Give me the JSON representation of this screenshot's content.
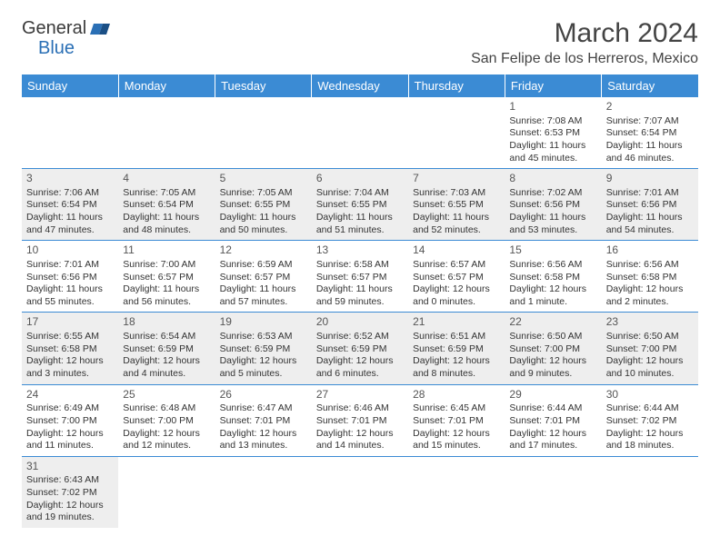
{
  "logo": {
    "text1": "General",
    "text2": "Blue"
  },
  "title": "March 2024",
  "location": "San Felipe de los Herreros, Mexico",
  "colors": {
    "header_bg": "#3b8bd4",
    "header_fg": "#ffffff",
    "alt_row_bg": "#eeeeee",
    "border": "#3b8bd4",
    "text": "#333333"
  },
  "days_of_week": [
    "Sunday",
    "Monday",
    "Tuesday",
    "Wednesday",
    "Thursday",
    "Friday",
    "Saturday"
  ],
  "weeks": [
    [
      null,
      null,
      null,
      null,
      null,
      {
        "n": "1",
        "sunrise": "Sunrise: 7:08 AM",
        "sunset": "Sunset: 6:53 PM",
        "day1": "Daylight: 11 hours",
        "day2": "and 45 minutes."
      },
      {
        "n": "2",
        "sunrise": "Sunrise: 7:07 AM",
        "sunset": "Sunset: 6:54 PM",
        "day1": "Daylight: 11 hours",
        "day2": "and 46 minutes."
      }
    ],
    [
      {
        "n": "3",
        "sunrise": "Sunrise: 7:06 AM",
        "sunset": "Sunset: 6:54 PM",
        "day1": "Daylight: 11 hours",
        "day2": "and 47 minutes."
      },
      {
        "n": "4",
        "sunrise": "Sunrise: 7:05 AM",
        "sunset": "Sunset: 6:54 PM",
        "day1": "Daylight: 11 hours",
        "day2": "and 48 minutes."
      },
      {
        "n": "5",
        "sunrise": "Sunrise: 7:05 AM",
        "sunset": "Sunset: 6:55 PM",
        "day1": "Daylight: 11 hours",
        "day2": "and 50 minutes."
      },
      {
        "n": "6",
        "sunrise": "Sunrise: 7:04 AM",
        "sunset": "Sunset: 6:55 PM",
        "day1": "Daylight: 11 hours",
        "day2": "and 51 minutes."
      },
      {
        "n": "7",
        "sunrise": "Sunrise: 7:03 AM",
        "sunset": "Sunset: 6:55 PM",
        "day1": "Daylight: 11 hours",
        "day2": "and 52 minutes."
      },
      {
        "n": "8",
        "sunrise": "Sunrise: 7:02 AM",
        "sunset": "Sunset: 6:56 PM",
        "day1": "Daylight: 11 hours",
        "day2": "and 53 minutes."
      },
      {
        "n": "9",
        "sunrise": "Sunrise: 7:01 AM",
        "sunset": "Sunset: 6:56 PM",
        "day1": "Daylight: 11 hours",
        "day2": "and 54 minutes."
      }
    ],
    [
      {
        "n": "10",
        "sunrise": "Sunrise: 7:01 AM",
        "sunset": "Sunset: 6:56 PM",
        "day1": "Daylight: 11 hours",
        "day2": "and 55 minutes."
      },
      {
        "n": "11",
        "sunrise": "Sunrise: 7:00 AM",
        "sunset": "Sunset: 6:57 PM",
        "day1": "Daylight: 11 hours",
        "day2": "and 56 minutes."
      },
      {
        "n": "12",
        "sunrise": "Sunrise: 6:59 AM",
        "sunset": "Sunset: 6:57 PM",
        "day1": "Daylight: 11 hours",
        "day2": "and 57 minutes."
      },
      {
        "n": "13",
        "sunrise": "Sunrise: 6:58 AM",
        "sunset": "Sunset: 6:57 PM",
        "day1": "Daylight: 11 hours",
        "day2": "and 59 minutes."
      },
      {
        "n": "14",
        "sunrise": "Sunrise: 6:57 AM",
        "sunset": "Sunset: 6:57 PM",
        "day1": "Daylight: 12 hours",
        "day2": "and 0 minutes."
      },
      {
        "n": "15",
        "sunrise": "Sunrise: 6:56 AM",
        "sunset": "Sunset: 6:58 PM",
        "day1": "Daylight: 12 hours",
        "day2": "and 1 minute."
      },
      {
        "n": "16",
        "sunrise": "Sunrise: 6:56 AM",
        "sunset": "Sunset: 6:58 PM",
        "day1": "Daylight: 12 hours",
        "day2": "and 2 minutes."
      }
    ],
    [
      {
        "n": "17",
        "sunrise": "Sunrise: 6:55 AM",
        "sunset": "Sunset: 6:58 PM",
        "day1": "Daylight: 12 hours",
        "day2": "and 3 minutes."
      },
      {
        "n": "18",
        "sunrise": "Sunrise: 6:54 AM",
        "sunset": "Sunset: 6:59 PM",
        "day1": "Daylight: 12 hours",
        "day2": "and 4 minutes."
      },
      {
        "n": "19",
        "sunrise": "Sunrise: 6:53 AM",
        "sunset": "Sunset: 6:59 PM",
        "day1": "Daylight: 12 hours",
        "day2": "and 5 minutes."
      },
      {
        "n": "20",
        "sunrise": "Sunrise: 6:52 AM",
        "sunset": "Sunset: 6:59 PM",
        "day1": "Daylight: 12 hours",
        "day2": "and 6 minutes."
      },
      {
        "n": "21",
        "sunrise": "Sunrise: 6:51 AM",
        "sunset": "Sunset: 6:59 PM",
        "day1": "Daylight: 12 hours",
        "day2": "and 8 minutes."
      },
      {
        "n": "22",
        "sunrise": "Sunrise: 6:50 AM",
        "sunset": "Sunset: 7:00 PM",
        "day1": "Daylight: 12 hours",
        "day2": "and 9 minutes."
      },
      {
        "n": "23",
        "sunrise": "Sunrise: 6:50 AM",
        "sunset": "Sunset: 7:00 PM",
        "day1": "Daylight: 12 hours",
        "day2": "and 10 minutes."
      }
    ],
    [
      {
        "n": "24",
        "sunrise": "Sunrise: 6:49 AM",
        "sunset": "Sunset: 7:00 PM",
        "day1": "Daylight: 12 hours",
        "day2": "and 11 minutes."
      },
      {
        "n": "25",
        "sunrise": "Sunrise: 6:48 AM",
        "sunset": "Sunset: 7:00 PM",
        "day1": "Daylight: 12 hours",
        "day2": "and 12 minutes."
      },
      {
        "n": "26",
        "sunrise": "Sunrise: 6:47 AM",
        "sunset": "Sunset: 7:01 PM",
        "day1": "Daylight: 12 hours",
        "day2": "and 13 minutes."
      },
      {
        "n": "27",
        "sunrise": "Sunrise: 6:46 AM",
        "sunset": "Sunset: 7:01 PM",
        "day1": "Daylight: 12 hours",
        "day2": "and 14 minutes."
      },
      {
        "n": "28",
        "sunrise": "Sunrise: 6:45 AM",
        "sunset": "Sunset: 7:01 PM",
        "day1": "Daylight: 12 hours",
        "day2": "and 15 minutes."
      },
      {
        "n": "29",
        "sunrise": "Sunrise: 6:44 AM",
        "sunset": "Sunset: 7:01 PM",
        "day1": "Daylight: 12 hours",
        "day2": "and 17 minutes."
      },
      {
        "n": "30",
        "sunrise": "Sunrise: 6:44 AM",
        "sunset": "Sunset: 7:02 PM",
        "day1": "Daylight: 12 hours",
        "day2": "and 18 minutes."
      }
    ],
    [
      {
        "n": "31",
        "sunrise": "Sunrise: 6:43 AM",
        "sunset": "Sunset: 7:02 PM",
        "day1": "Daylight: 12 hours",
        "day2": "and 19 minutes."
      },
      null,
      null,
      null,
      null,
      null,
      null
    ]
  ]
}
